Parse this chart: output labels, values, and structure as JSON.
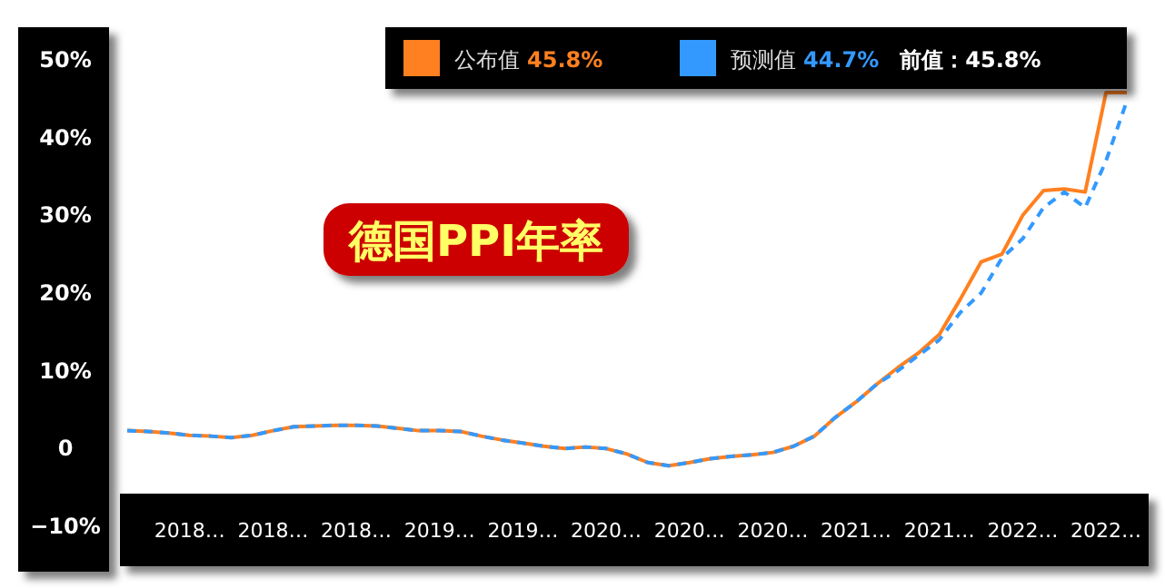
{
  "chart_data": {
    "type": "line",
    "title": "德国PPI年率",
    "categories": [
      null,
      null,
      null,
      "2018…",
      null,
      null,
      null,
      "2018…",
      null,
      null,
      null,
      "2018…",
      null,
      null,
      null,
      "2019…",
      null,
      null,
      null,
      "2019…",
      null,
      null,
      null,
      "2020…",
      null,
      null,
      null,
      "2020…",
      null,
      null,
      null,
      "2020…",
      null,
      null,
      null,
      "2021…",
      null,
      null,
      null,
      "2021…",
      null,
      null,
      null,
      "2022…",
      null,
      null,
      null,
      "2022…",
      null
    ],
    "series": [
      {
        "name": "公布值",
        "color": "#ff8020",
        "line_style": "solid",
        "values": [
          2.3,
          2.2,
          2.0,
          1.7,
          1.6,
          1.4,
          1.7,
          2.3,
          2.8,
          2.9,
          3.0,
          3.0,
          2.9,
          2.6,
          2.3,
          2.3,
          2.2,
          1.6,
          1.1,
          0.7,
          0.3,
          0.0,
          0.2,
          0.0,
          -0.7,
          -1.8,
          -2.2,
          -1.8,
          -1.3,
          -1.0,
          -0.8,
          -0.5,
          0.3,
          1.6,
          4.0,
          6.0,
          8.3,
          10.4,
          12.3,
          14.7,
          19.2,
          24.0,
          25.0,
          30.0,
          33.2,
          33.4,
          33.0,
          45.8,
          45.8
        ]
      },
      {
        "name": "预测值",
        "color": "#3399ff",
        "line_style": "dashed",
        "values": [
          2.3,
          2.2,
          2.0,
          1.7,
          1.6,
          1.4,
          1.7,
          2.3,
          2.8,
          2.9,
          3.0,
          3.0,
          2.9,
          2.6,
          2.3,
          2.3,
          2.2,
          1.6,
          1.1,
          0.7,
          0.3,
          0.0,
          0.2,
          0.0,
          -0.7,
          -1.8,
          -2.2,
          -1.8,
          -1.3,
          -1.0,
          -0.8,
          -0.5,
          0.3,
          1.6,
          4.0,
          6.0,
          8.3,
          10.0,
          12.0,
          14.0,
          17.5,
          20.0,
          24.5,
          27.0,
          31.0,
          33.0,
          31.0,
          37.0,
          44.7
        ]
      }
    ],
    "ylim": [
      -10,
      50
    ],
    "yticks": [
      {
        "value": 50,
        "label": "50%"
      },
      {
        "value": 40,
        "label": "40%"
      },
      {
        "value": 30,
        "label": "30%"
      },
      {
        "value": 20,
        "label": "20%"
      },
      {
        "value": 10,
        "label": "10%"
      },
      0,
      {
        "value": -10,
        "label": "−10%"
      }
    ],
    "legend": "top",
    "annotations": [
      "45.8%",
      "44.7%",
      "前值：45.8%"
    ]
  }
}
